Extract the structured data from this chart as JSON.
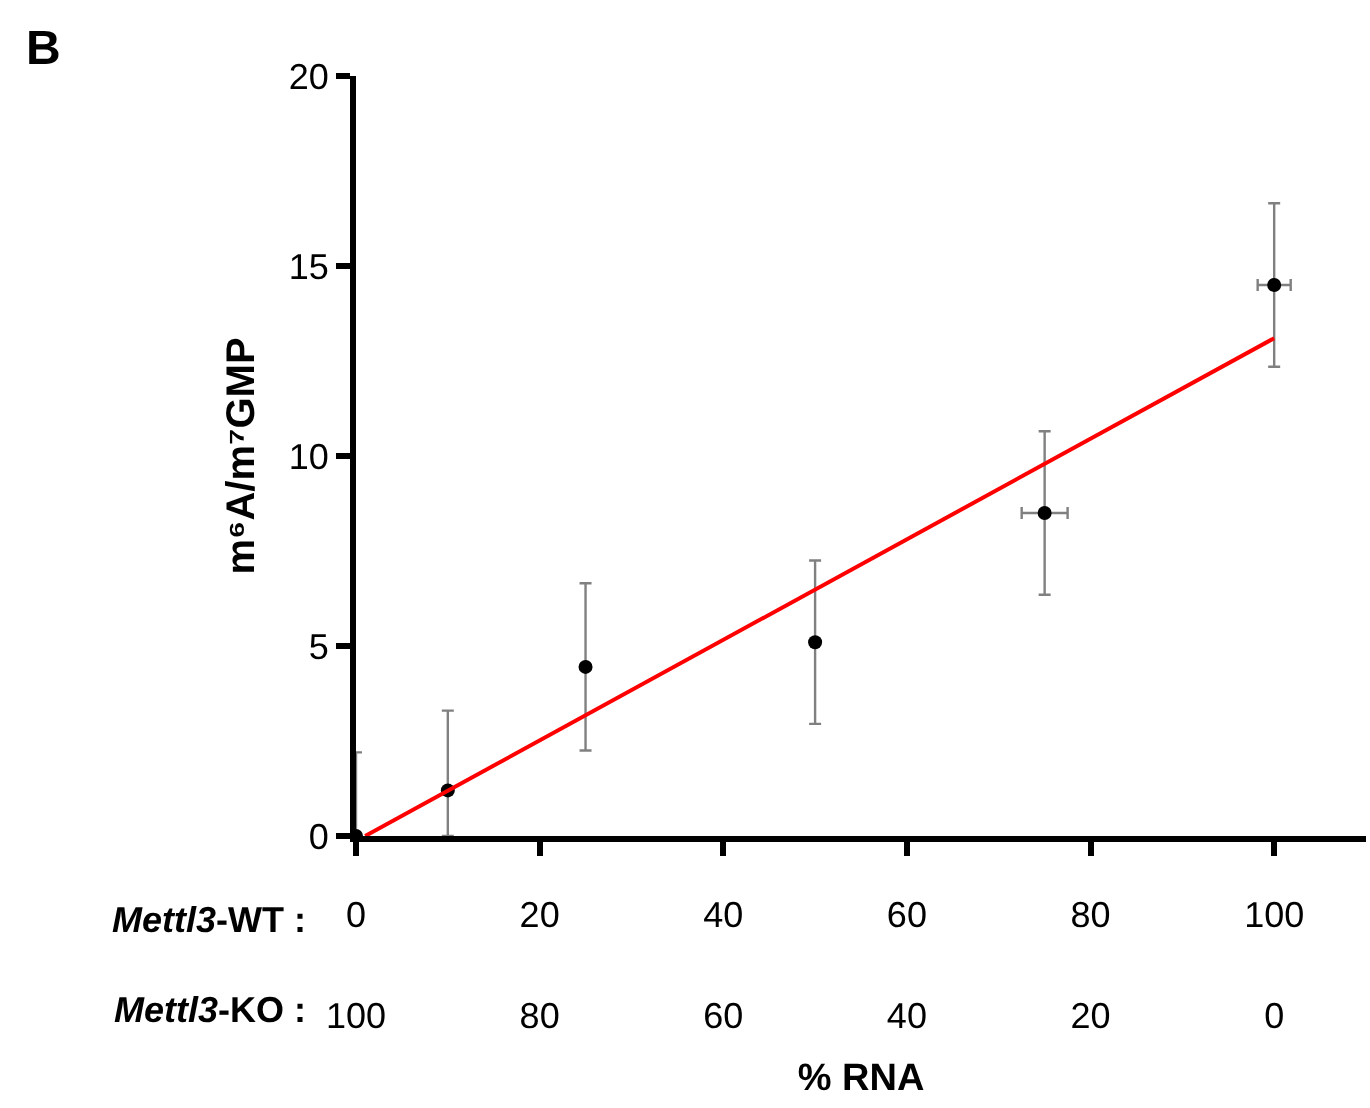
{
  "chart_data": {
    "type": "scatter",
    "xlabel": "% RNA",
    "ylabel": "m⁶A/m⁷GMP",
    "annotations": [
      "B",
      "Mettl3-WT :",
      "Mettl3-KO :"
    ],
    "xlim": [
      0,
      110
    ],
    "xticks": [
      0,
      20,
      40,
      60,
      80,
      100
    ],
    "x2lim": [
      100,
      -10
    ],
    "x2ticks": [
      100,
      80,
      60,
      40,
      20,
      0
    ],
    "ylim": [
      0,
      20
    ],
    "yticks": [
      0,
      5,
      10,
      15,
      20
    ],
    "series": [
      {
        "color": "#000000",
        "marker": "circle",
        "x": [
          0,
          10,
          25,
          50,
          75,
          100
        ],
        "values": [
          0,
          1.2,
          4.45,
          5.1,
          8.5,
          14.5
        ],
        "errors": [
          [
            0,
            2.2
          ],
          [
            0,
            3.3
          ],
          2.2,
          2.15,
          2.15,
          2.15
        ],
        "xerrors": [
          null,
          null,
          null,
          null,
          2.5,
          1.8
        ]
      },
      {
        "type": "line",
        "color": "#ff0000",
        "x": [
          1,
          100
        ],
        "values": [
          0,
          13.1
        ]
      }
    ]
  }
}
